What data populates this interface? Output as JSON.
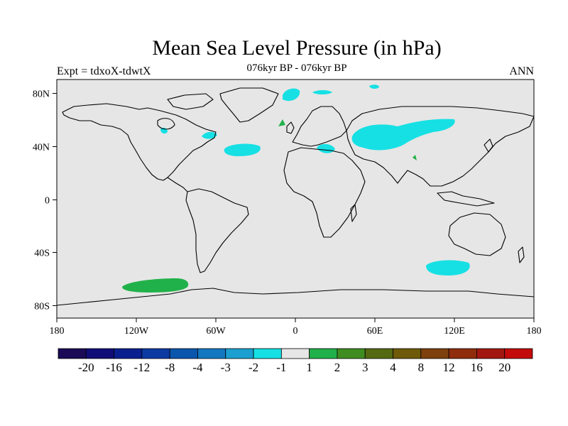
{
  "map": {
    "title": "Mean Sea Level Pressure (in hPa)",
    "subtitle": "076kyr BP - 076kyr BP",
    "left_label": "Expt = tdxoX-tdwtX",
    "right_label": "ANN",
    "lon_ticks": [
      "180",
      "120W",
      "60W",
      "0",
      "60E",
      "120E",
      "180"
    ],
    "lat_ticks": [
      "80N",
      "40N",
      "0",
      "40S",
      "80S"
    ],
    "background_color": "#e6e6e6"
  },
  "colorbar": {
    "colors": [
      "#1b0a56",
      "#100d78",
      "#0a1f8f",
      "#0c3aa3",
      "#0a56ad",
      "#1277c0",
      "#1a9fd0",
      "#16e0e4",
      "#e6e6e6",
      "#21b14a",
      "#3f8d20",
      "#546a12",
      "#6e5a08",
      "#7e400c",
      "#8f2c0c",
      "#a21710",
      "#c30b0b"
    ],
    "labels": [
      "-20",
      "-16",
      "-12",
      "-8",
      "-4",
      "-3",
      "-2",
      "-1",
      "1",
      "2",
      "3",
      "4",
      "8",
      "12",
      "16",
      "20"
    ]
  }
}
